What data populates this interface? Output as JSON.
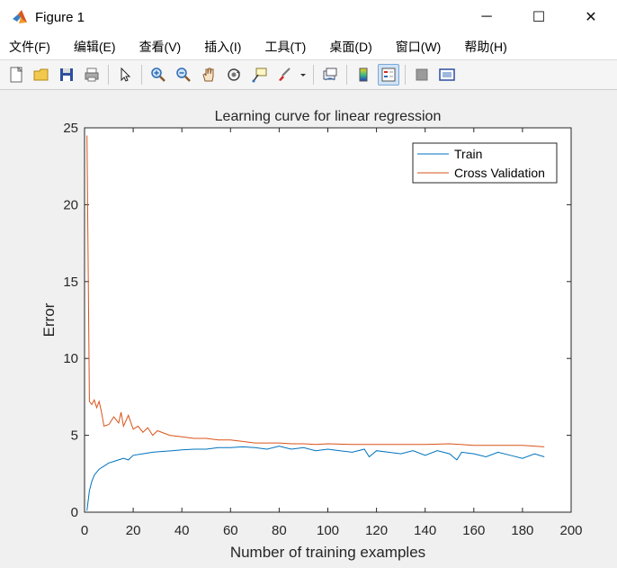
{
  "window": {
    "title": "Figure 1",
    "controls": {
      "minimize": "─",
      "maximize": "☐",
      "close": "✕"
    }
  },
  "menu": {
    "items": [
      "文件(F)",
      "编辑(E)",
      "查看(V)",
      "插入(I)",
      "工具(T)",
      "桌面(D)",
      "窗口(W)",
      "帮助(H)"
    ]
  },
  "toolbar": {
    "buttons": [
      "new-figure-icon",
      "open-file-icon",
      "save-icon",
      "print-icon",
      "pointer-icon",
      "zoom-in-icon",
      "zoom-out-icon",
      "pan-hand-icon",
      "rotate-3d-icon",
      "data-cursor-icon",
      "brush-icon",
      "dropdown-arrow-icon",
      "link-plot-icon",
      "colorbar-icon",
      "legend-icon",
      "hide-plot-tools-icon",
      "show-plot-tools-icon"
    ]
  },
  "colors": {
    "train": "#0072BD",
    "cv": "#D95319",
    "axes_bg": "#ffffff",
    "figure_bg": "#f0f0f0"
  },
  "chart_data": {
    "type": "line",
    "title": "Learning curve for linear regression",
    "xlabel": "Number of training examples",
    "ylabel": "Error",
    "xlim": [
      0,
      200
    ],
    "ylim": [
      0,
      25
    ],
    "xticks": [
      0,
      20,
      40,
      60,
      80,
      100,
      120,
      140,
      160,
      180,
      200
    ],
    "yticks": [
      0,
      5,
      10,
      15,
      20,
      25
    ],
    "grid": false,
    "legend_position": "top-right",
    "series": [
      {
        "name": "Train",
        "color": "#0072BD",
        "x": [
          1,
          2,
          3,
          4,
          5,
          6,
          8,
          10,
          12,
          14,
          16,
          18,
          20,
          24,
          28,
          32,
          36,
          40,
          45,
          50,
          55,
          60,
          65,
          70,
          75,
          80,
          85,
          90,
          95,
          100,
          105,
          110,
          115,
          117,
          120,
          125,
          130,
          135,
          140,
          145,
          150,
          153,
          155,
          160,
          165,
          170,
          175,
          180,
          185,
          189
        ],
        "y": [
          0.1,
          1.4,
          2.0,
          2.4,
          2.6,
          2.8,
          3.0,
          3.2,
          3.3,
          3.4,
          3.5,
          3.4,
          3.7,
          3.8,
          3.9,
          3.95,
          4.0,
          4.05,
          4.1,
          4.1,
          4.2,
          4.2,
          4.25,
          4.2,
          4.1,
          4.3,
          4.1,
          4.2,
          4.0,
          4.1,
          4.0,
          3.9,
          4.1,
          3.6,
          4.0,
          3.9,
          3.8,
          4.0,
          3.7,
          4.0,
          3.8,
          3.4,
          3.9,
          3.8,
          3.6,
          3.9,
          3.7,
          3.5,
          3.8,
          3.6
        ]
      },
      {
        "name": "Cross Validation",
        "color": "#D95319",
        "x": [
          1,
          2,
          3,
          4,
          5,
          6,
          7,
          8,
          10,
          12,
          14,
          15,
          16,
          18,
          20,
          22,
          24,
          26,
          28,
          30,
          35,
          40,
          45,
          50,
          55,
          60,
          65,
          70,
          75,
          80,
          85,
          90,
          95,
          100,
          110,
          120,
          130,
          140,
          150,
          160,
          170,
          180,
          189
        ],
        "y": [
          24.5,
          7.2,
          7.0,
          7.3,
          6.8,
          7.2,
          6.5,
          5.6,
          5.7,
          6.2,
          5.8,
          6.5,
          5.6,
          6.3,
          5.4,
          5.6,
          5.2,
          5.5,
          5.0,
          5.3,
          5.0,
          4.9,
          4.8,
          4.8,
          4.7,
          4.7,
          4.6,
          4.5,
          4.5,
          4.5,
          4.45,
          4.45,
          4.4,
          4.45,
          4.4,
          4.4,
          4.4,
          4.4,
          4.45,
          4.35,
          4.35,
          4.35,
          4.25
        ]
      }
    ]
  }
}
